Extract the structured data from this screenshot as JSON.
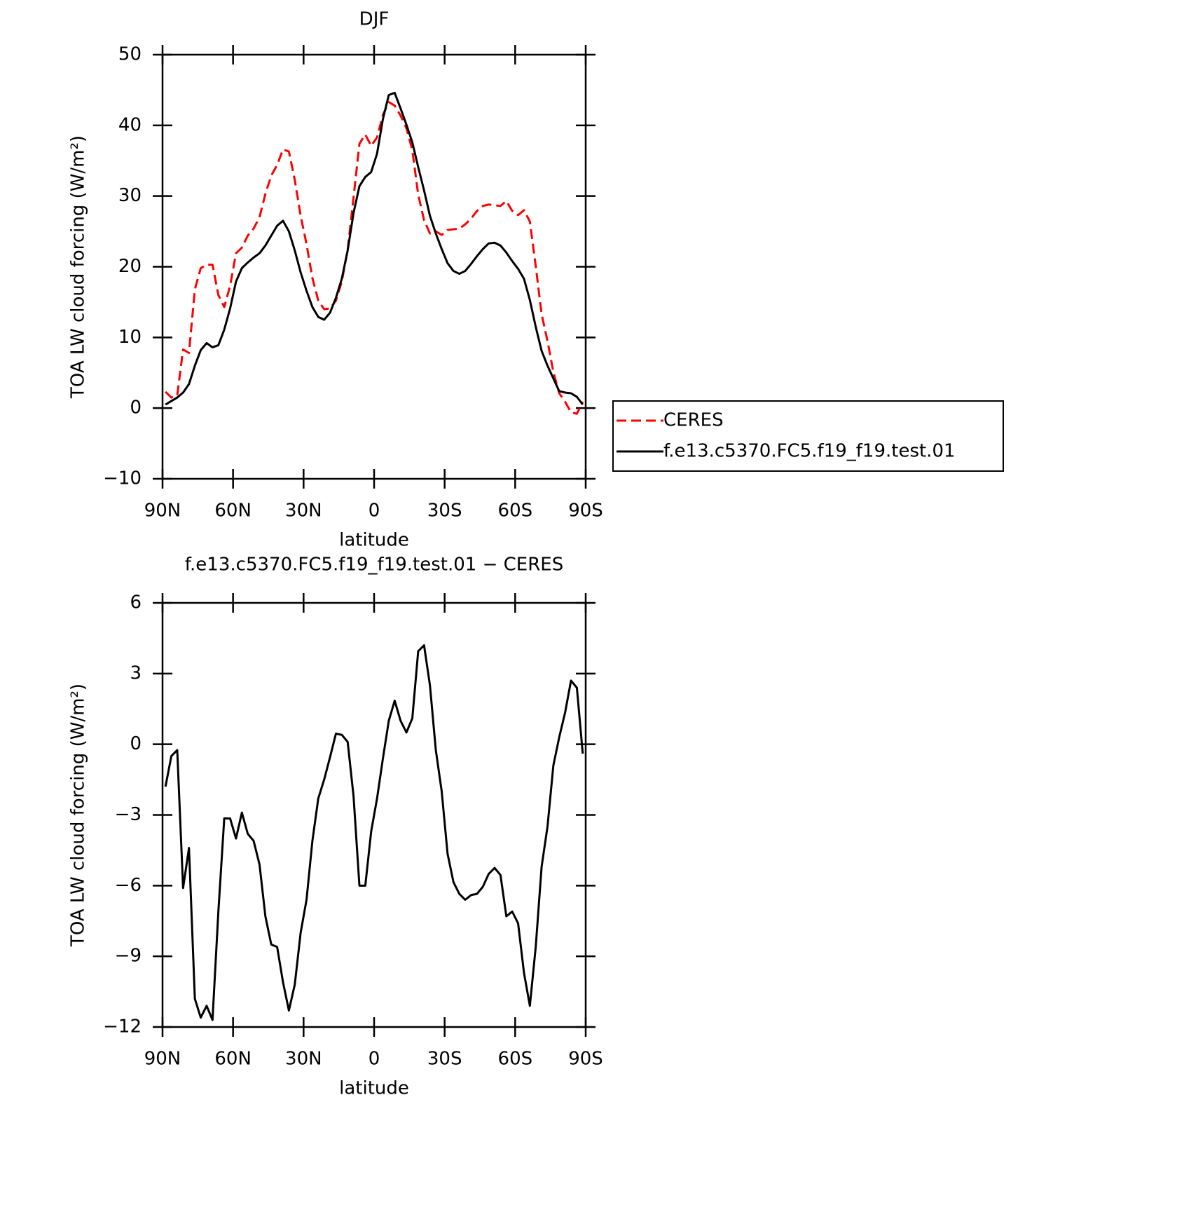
{
  "chart_data": [
    {
      "type": "line",
      "title": "DJF",
      "xlabel": "latitude",
      "ylabel": "TOA LW cloud forcing (W/m²)",
      "x": [
        88.75,
        86.25,
        83.75,
        81.25,
        78.75,
        76.25,
        73.75,
        71.25,
        68.75,
        66.25,
        63.75,
        61.25,
        58.75,
        56.25,
        53.75,
        51.25,
        48.75,
        46.25,
        43.75,
        41.25,
        38.75,
        36.25,
        33.75,
        31.25,
        28.75,
        26.25,
        23.75,
        21.25,
        18.75,
        16.25,
        13.75,
        11.25,
        8.75,
        6.25,
        3.75,
        1.25,
        -1.25,
        -3.75,
        -6.25,
        -8.75,
        -11.25,
        -13.75,
        -16.25,
        -18.75,
        -21.25,
        -23.75,
        -26.25,
        -28.75,
        -31.25,
        -33.75,
        -36.25,
        -38.75,
        -41.25,
        -43.75,
        -46.25,
        -48.75,
        -51.25,
        -53.75,
        -56.25,
        -58.75,
        -61.25,
        -63.75,
        -66.25,
        -68.75,
        -71.25,
        -73.75,
        -76.25,
        -78.75,
        -81.25,
        -83.75,
        -86.25,
        -88.75
      ],
      "series": [
        {
          "name": "CERES",
          "color": "#ff0000",
          "dash": true,
          "values": [
            2.3,
            1.5,
            1.8,
            8.3,
            7.8,
            16.8,
            19.8,
            20.3,
            20.3,
            16.0,
            14.3,
            17.3,
            21.9,
            22.7,
            24.4,
            25.4,
            27.0,
            30.3,
            32.9,
            34.4,
            36.6,
            36.3,
            32.3,
            27.2,
            23.2,
            18.4,
            15.2,
            14.0,
            14.1,
            15.2,
            17.9,
            22.4,
            29.8,
            37.4,
            38.7,
            37.1,
            38.3,
            41.5,
            43.3,
            42.8,
            41.4,
            39.6,
            36.5,
            30.2,
            26.6,
            24.7,
            25.0,
            24.5,
            25.2,
            25.3,
            25.4,
            26.0,
            26.8,
            27.9,
            28.6,
            28.8,
            28.7,
            28.6,
            29.3,
            27.9,
            27.3,
            28.0,
            26.4,
            20.1,
            13.3,
            9.5,
            5.1,
            2.1,
            0.9,
            -0.6,
            -0.8,
            0.9
          ]
        },
        {
          "name": "f.e13.c5370.FC5.f19_f19.test.01",
          "color": "#000000",
          "dash": false,
          "values": [
            0.5,
            1.0,
            1.5,
            2.2,
            3.4,
            6.0,
            8.2,
            9.2,
            8.6,
            8.9,
            11.1,
            14.1,
            17.9,
            19.8,
            20.6,
            21.3,
            21.9,
            23.0,
            24.4,
            25.8,
            26.5,
            25.0,
            22.3,
            19.2,
            16.6,
            14.3,
            12.9,
            12.5,
            13.5,
            15.6,
            18.3,
            22.3,
            27.6,
            31.4,
            32.7,
            33.4,
            36.0,
            40.9,
            44.3,
            44.6,
            42.4,
            40.1,
            37.6,
            34.1,
            30.8,
            27.2,
            24.7,
            22.5,
            20.5,
            19.4,
            19.0,
            19.4,
            20.4,
            21.5,
            22.5,
            23.3,
            23.4,
            23.0,
            22.0,
            20.8,
            19.7,
            18.3,
            15.3,
            11.5,
            8.1,
            6.0,
            4.2,
            2.4,
            2.2,
            2.1,
            1.6,
            0.5
          ]
        }
      ],
      "xlim": [
        90,
        -90
      ],
      "ylim": [
        -10,
        50
      ],
      "xticks": [
        {
          "value": 90,
          "label": "90N"
        },
        {
          "value": 60,
          "label": "60N"
        },
        {
          "value": 30,
          "label": "30N"
        },
        0,
        {
          "value": -30,
          "label": "30S"
        },
        {
          "value": -60,
          "label": "60S"
        },
        {
          "value": -90,
          "label": "90S"
        }
      ],
      "yticks": [
        {
          "value": -10,
          "label": "−10"
        },
        0,
        10,
        20,
        30,
        40,
        50
      ],
      "legend": "right"
    },
    {
      "type": "line",
      "title": "f.e13.c5370.FC5.f19_f19.test.01 − CERES",
      "xlabel": "latitude",
      "ylabel": "TOA LW cloud forcing (W/m²)",
      "x": [
        88.75,
        86.25,
        83.75,
        81.25,
        78.75,
        76.25,
        73.75,
        71.25,
        68.75,
        66.25,
        63.75,
        61.25,
        58.75,
        56.25,
        53.75,
        51.25,
        48.75,
        46.25,
        43.75,
        41.25,
        38.75,
        36.25,
        33.75,
        31.25,
        28.75,
        26.25,
        23.75,
        21.25,
        18.75,
        16.25,
        13.75,
        11.25,
        8.75,
        6.25,
        3.75,
        1.25,
        -1.25,
        -3.75,
        -6.25,
        -8.75,
        -11.25,
        -13.75,
        -16.25,
        -18.75,
        -21.25,
        -23.75,
        -26.25,
        -28.75,
        -31.25,
        -33.75,
        -36.25,
        -38.75,
        -41.25,
        -43.75,
        -46.25,
        -48.75,
        -51.25,
        -53.75,
        -56.25,
        -58.75,
        -61.25,
        -63.75,
        -66.25,
        -68.75,
        -71.25,
        -73.75,
        -76.25,
        -78.75,
        -81.25,
        -83.75,
        -86.25,
        -88.75
      ],
      "series": [
        {
          "color": "#000000",
          "dash": false,
          "values": [
            -1.8,
            -0.5,
            -0.25,
            -6.1,
            -4.4,
            -10.8,
            -11.6,
            -11.1,
            -11.7,
            -7.1,
            -3.15,
            -3.15,
            -4.0,
            -2.9,
            -3.8,
            -4.1,
            -5.1,
            -7.3,
            -8.5,
            -8.6,
            -10.1,
            -11.3,
            -10.2,
            -8.0,
            -6.6,
            -4.1,
            -2.3,
            -1.5,
            -0.55,
            0.45,
            0.4,
            0.1,
            -2.2,
            -6.0,
            -6.0,
            -3.7,
            -2.3,
            -0.6,
            1.0,
            1.85,
            1.0,
            0.5,
            1.1,
            3.95,
            4.2,
            2.5,
            -0.25,
            -2.0,
            -4.65,
            -5.85,
            -6.35,
            -6.6,
            -6.4,
            -6.35,
            -6.05,
            -5.5,
            -5.25,
            -5.55,
            -7.3,
            -7.1,
            -7.6,
            -9.7,
            -11.1,
            -8.6,
            -5.2,
            -3.5,
            -0.9,
            0.3,
            1.35,
            2.7,
            2.4,
            -0.4
          ]
        }
      ],
      "xlim": [
        90,
        -90
      ],
      "ylim": [
        -12,
        6
      ],
      "xticks": [
        {
          "value": 90,
          "label": "90N"
        },
        {
          "value": 60,
          "label": "60N"
        },
        {
          "value": 30,
          "label": "30N"
        },
        0,
        {
          "value": -30,
          "label": "30S"
        },
        {
          "value": -60,
          "label": "60S"
        },
        {
          "value": -90,
          "label": "90S"
        }
      ],
      "yticks": [
        {
          "value": -12,
          "label": "−12"
        },
        {
          "value": -9,
          "label": "−9"
        },
        {
          "value": -6,
          "label": "−6"
        },
        {
          "value": -3,
          "label": "−3"
        },
        0,
        3,
        6
      ]
    }
  ]
}
